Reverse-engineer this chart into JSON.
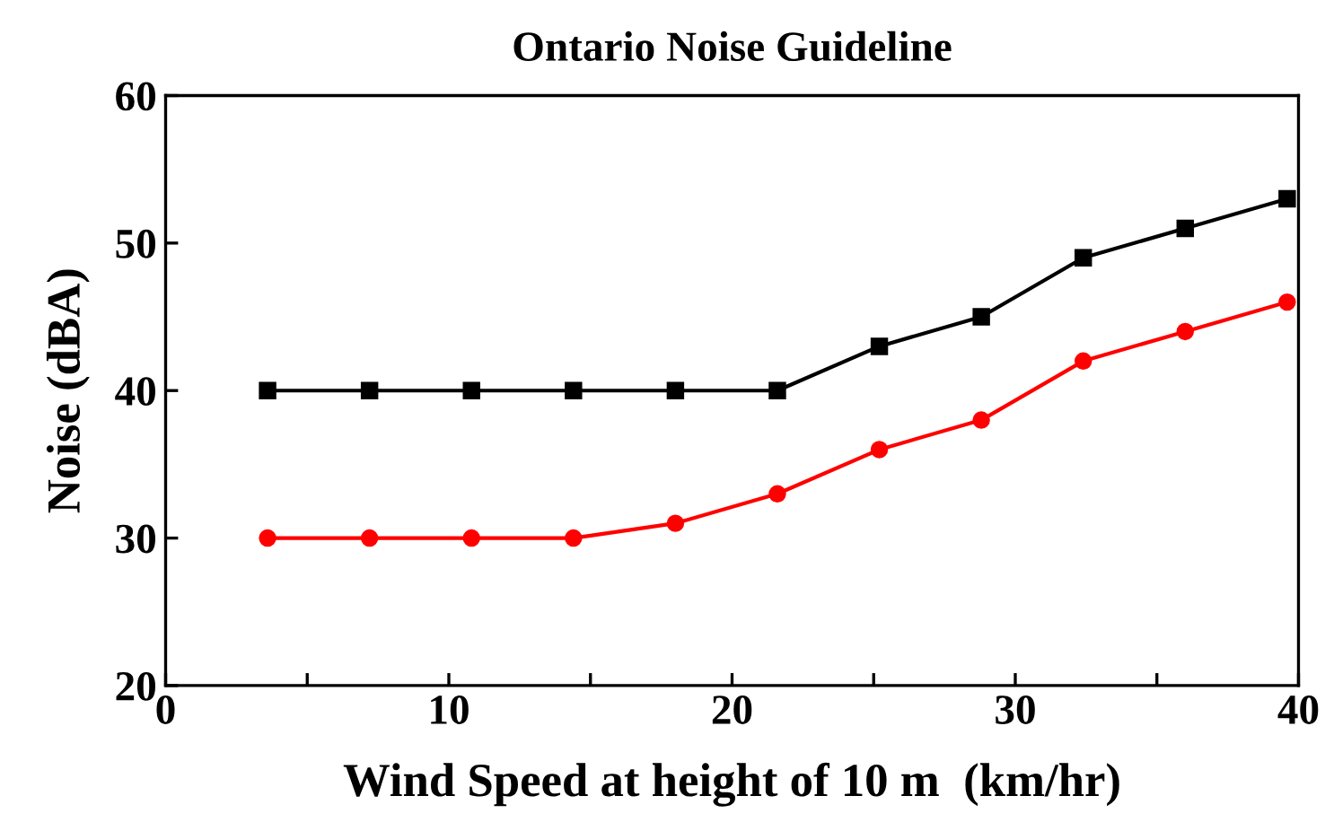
{
  "chart_data": {
    "type": "line",
    "title": "Ontario Noise Guideline",
    "xlabel": "Wind Speed at height of 10 m  (km/hr)",
    "ylabel": "Noise (dBA)",
    "x": [
      3.6,
      7.2,
      10.8,
      14.4,
      18,
      21.6,
      25.2,
      28.8,
      32.4,
      36,
      39.6
    ],
    "series": [
      {
        "color": "#000000",
        "marker": "square",
        "values": [
          40,
          40,
          40,
          40,
          40,
          40,
          43,
          45,
          49,
          51,
          53
        ]
      },
      {
        "color": "#ff0000",
        "marker": "circle",
        "values": [
          30,
          30,
          30,
          30,
          31,
          33,
          36,
          38,
          42,
          44,
          46
        ]
      }
    ],
    "xlim": [
      0,
      40
    ],
    "xticks": [
      0,
      {
        "value": 5,
        "label": null
      },
      10,
      {
        "value": 15,
        "label": null
      },
      20,
      {
        "value": 25,
        "label": null
      },
      30,
      {
        "value": 35,
        "label": null
      },
      40
    ],
    "ylim": [
      20,
      60
    ],
    "yticks": [
      20,
      30,
      40,
      50,
      60
    ],
    "grid": false,
    "legend": false,
    "line_style": "solid"
  }
}
